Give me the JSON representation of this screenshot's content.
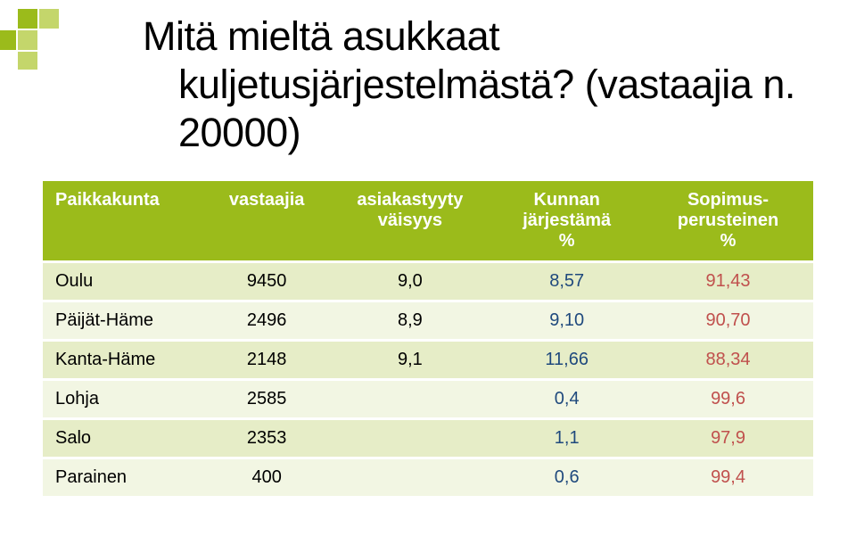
{
  "colors": {
    "accent": "#9bbb1b",
    "header_bg": "#9bbb1b",
    "header_text": "#ffffff",
    "row_odd_bg": "#e6edc7",
    "row_even_bg": "#f2f6e3",
    "blue_text": "#1f497d",
    "red_text": "#c0504d",
    "title_text": "#000000"
  },
  "title_line1": "Mitä mieltä asukkaat",
  "title_line2": "kuljetusjärjestelmästä?",
  "title_line3": "(vastaajia n. 20000)",
  "table": {
    "columns": [
      {
        "key": "pk",
        "label": "Paikkakunta",
        "align": "left"
      },
      {
        "key": "vast",
        "label": "vastaajia",
        "align": "center"
      },
      {
        "key": "tyyty",
        "label": "asiakastyyty\nväisyys",
        "align": "center"
      },
      {
        "key": "kun",
        "label": "Kunnan\njärjestämä\n%",
        "align": "center",
        "value_color": "blue"
      },
      {
        "key": "sop",
        "label": "Sopimus-\nperusteinen\n%",
        "align": "center",
        "value_color": "red"
      }
    ],
    "rows": [
      {
        "pk": "Oulu",
        "vast": "9450",
        "tyyty": "9,0",
        "kun": "8,57",
        "sop": "91,43"
      },
      {
        "pk": "Päijät-Häme",
        "vast": "2496",
        "tyyty": "8,9",
        "kun": "9,10",
        "sop": "90,70"
      },
      {
        "pk": "Kanta-Häme",
        "vast": "2148",
        "tyyty": "9,1",
        "kun": "11,66",
        "sop": "88,34"
      },
      {
        "pk": "Lohja",
        "vast": "2585",
        "tyyty": "",
        "kun": "0,4",
        "sop": "99,6"
      },
      {
        "pk": "Salo",
        "vast": "2353",
        "tyyty": "",
        "kun": "1,1",
        "sop": "97,9"
      },
      {
        "pk": "Parainen",
        "vast": "400",
        "tyyty": "",
        "kun": "0,6",
        "sop": "99,4"
      }
    ],
    "fonts": {
      "header_fontsize": 20,
      "cell_fontsize": 20
    }
  }
}
